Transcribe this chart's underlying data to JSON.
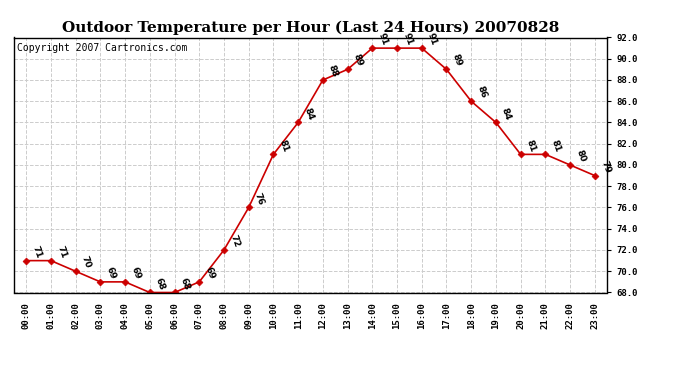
{
  "title": "Outdoor Temperature per Hour (Last 24 Hours) 20070828",
  "copyright": "Copyright 2007 Cartronics.com",
  "hours": [
    "00:00",
    "01:00",
    "02:00",
    "03:00",
    "04:00",
    "05:00",
    "06:00",
    "07:00",
    "08:00",
    "09:00",
    "10:00",
    "11:00",
    "12:00",
    "13:00",
    "14:00",
    "15:00",
    "16:00",
    "17:00",
    "18:00",
    "19:00",
    "20:00",
    "21:00",
    "22:00",
    "23:00"
  ],
  "temps": [
    71,
    71,
    70,
    69,
    69,
    68,
    68,
    69,
    72,
    76,
    81,
    84,
    88,
    89,
    91,
    91,
    91,
    89,
    86,
    84,
    81,
    81,
    80,
    79
  ],
  "line_color": "#cc0000",
  "marker_color": "#cc0000",
  "bg_color": "#ffffff",
  "grid_color": "#cccccc",
  "ylim_min": 68.0,
  "ylim_max": 92.0,
  "ytick_interval": 2.0,
  "title_fontsize": 11,
  "copyright_fontsize": 7,
  "label_fontsize": 6.5
}
